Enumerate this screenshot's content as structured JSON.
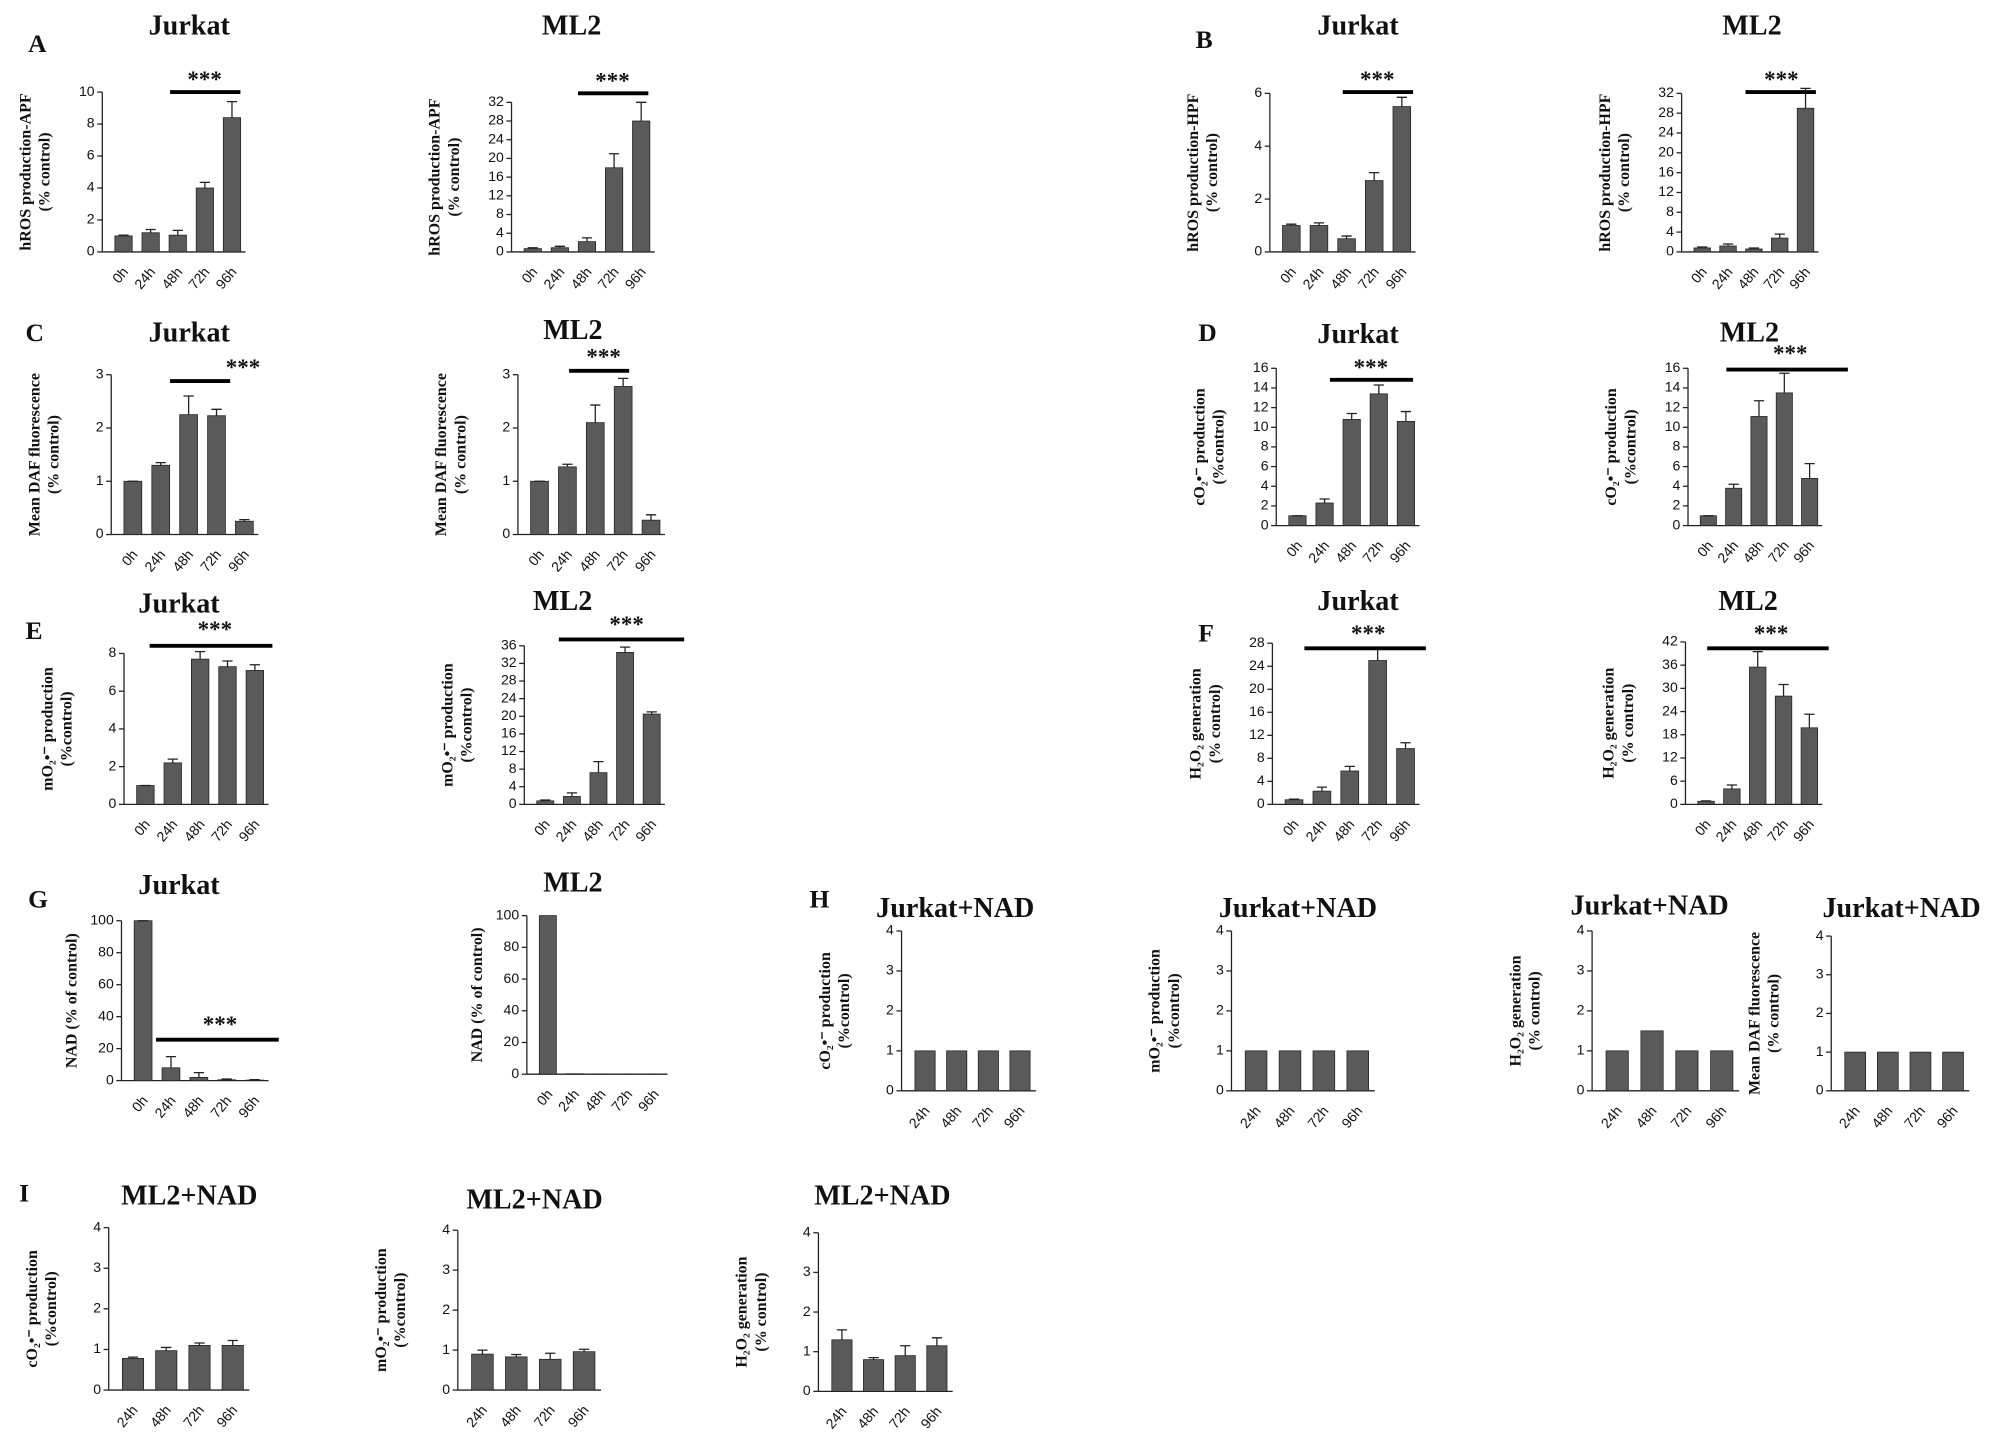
{
  "chart_data": [
    {
      "type": "bar",
      "panel": "A",
      "title": "Jurkat",
      "ylabel": [
        "hROS production-APF",
        "(% control)"
      ],
      "categories": [
        "0h",
        "24h",
        "48h",
        "72h",
        "96h"
      ],
      "values": [
        1,
        1.2,
        1.05,
        4,
        8.4
      ],
      "errors": [
        0.05,
        0.2,
        0.3,
        0.35,
        1.0
      ],
      "ylim": [
        0,
        10
      ],
      "yticks": [
        0,
        2,
        4,
        6,
        8,
        10
      ],
      "color": "#5a5a5a",
      "annotation": "***"
    },
    {
      "type": "bar",
      "title": "ML2",
      "ylabel": [
        "hROS production-APF",
        "(% control)"
      ],
      "categories": [
        "0h",
        "24h",
        "48h",
        "72h",
        "96h"
      ],
      "values": [
        0.7,
        0.9,
        2.2,
        18,
        28
      ],
      "errors": [
        0.2,
        0.3,
        0.8,
        3,
        4
      ],
      "ylim": [
        0,
        32
      ],
      "yticks": [
        0,
        4,
        8,
        12,
        16,
        20,
        24,
        28,
        32
      ],
      "color": "#5a5a5a",
      "annotation": "***"
    },
    {
      "type": "bar",
      "panel": "B",
      "title": "Jurkat",
      "ylabel": [
        "hROS production-HPF",
        "(% control)"
      ],
      "categories": [
        "0h",
        "24h",
        "48h",
        "72h",
        "96h"
      ],
      "values": [
        1,
        1,
        0.5,
        2.7,
        5.5
      ],
      "errors": [
        0.05,
        0.1,
        0.1,
        0.3,
        0.35
      ],
      "ylim": [
        0,
        6
      ],
      "yticks": [
        0,
        2,
        4,
        6
      ],
      "color": "#5a5a5a",
      "annotation": "***"
    },
    {
      "type": "bar",
      "title": "ML2",
      "ylabel": [
        "hROS production-HPF",
        "(% control)"
      ],
      "categories": [
        "0h",
        "24h",
        "48h",
        "72h",
        "96h"
      ],
      "values": [
        0.8,
        1.2,
        0.6,
        2.8,
        29
      ],
      "errors": [
        0.2,
        0.4,
        0.2,
        0.8,
        4
      ],
      "ylim": [
        0,
        32
      ],
      "yticks": [
        0,
        4,
        8,
        12,
        16,
        20,
        24,
        28,
        32
      ],
      "color": "#5a5a5a",
      "annotation": "***"
    },
    {
      "type": "bar",
      "panel": "C",
      "title": "Jurkat",
      "ylabel": [
        "Mean DAF fluorescence",
        "(% control)"
      ],
      "categories": [
        "0h",
        "24h",
        "48h",
        "72h",
        "96h"
      ],
      "values": [
        1,
        1.3,
        2.25,
        2.23,
        0.25
      ],
      "errors": [
        0,
        0.05,
        0.35,
        0.12,
        0.03
      ],
      "ylim": [
        0,
        3
      ],
      "yticks": [
        0,
        1,
        2,
        3
      ],
      "color": "#5a5a5a",
      "annotation": "***"
    },
    {
      "type": "bar",
      "title": "ML2",
      "ylabel": [
        "Mean DAF fluorescence",
        "(% control)"
      ],
      "categories": [
        "0h",
        "24h",
        "48h",
        "72h",
        "96h"
      ],
      "values": [
        1,
        1.27,
        2.1,
        2.78,
        0.27
      ],
      "errors": [
        0,
        0.05,
        0.33,
        0.15,
        0.1
      ],
      "ylim": [
        0,
        3
      ],
      "yticks": [
        0,
        1,
        2,
        3
      ],
      "color": "#5a5a5a",
      "annotation": "***"
    },
    {
      "type": "bar",
      "panel": "D",
      "title": "Jurkat",
      "ylabel": [
        "cO₂•⁻ production",
        "(%control)"
      ],
      "categories": [
        "0h",
        "24h",
        "48h",
        "72h",
        "96h"
      ],
      "values": [
        1,
        2.3,
        10.8,
        13.4,
        10.6
      ],
      "errors": [
        0,
        0.4,
        0.6,
        0.9,
        1
      ],
      "ylim": [
        0,
        16
      ],
      "yticks": [
        0,
        2,
        4,
        6,
        8,
        10,
        12,
        14,
        16
      ],
      "color": "#5a5a5a",
      "annotation": "***"
    },
    {
      "type": "bar",
      "title": "ML2",
      "ylabel": [
        "cO₂•⁻ production",
        "(%control)"
      ],
      "categories": [
        "0h",
        "24h",
        "48h",
        "72h",
        "96h"
      ],
      "values": [
        1,
        3.8,
        11.1,
        13.5,
        4.8
      ],
      "errors": [
        0,
        0.4,
        1.6,
        2,
        1.5
      ],
      "ylim": [
        0,
        16
      ],
      "yticks": [
        0,
        2,
        4,
        6,
        8,
        10,
        12,
        14,
        16
      ],
      "color": "#5a5a5a",
      "annotation": "***"
    },
    {
      "type": "bar",
      "panel": "E",
      "title": "Jurkat",
      "ylabel": [
        "mO₂•⁻ production",
        "(%control)"
      ],
      "categories": [
        "0h",
        "24h",
        "48h",
        "72h",
        "96h"
      ],
      "values": [
        1,
        2.2,
        7.7,
        7.3,
        7.1
      ],
      "errors": [
        0,
        0.2,
        0.4,
        0.3,
        0.3
      ],
      "ylim": [
        0,
        8
      ],
      "yticks": [
        0,
        2,
        4,
        6,
        8
      ],
      "color": "#5a5a5a",
      "annotation": "***"
    },
    {
      "type": "bar",
      "title": "ML2",
      "ylabel": [
        "mO₂•⁻ production",
        "(%control)"
      ],
      "categories": [
        "0h",
        "24h",
        "48h",
        "72h",
        "96h"
      ],
      "values": [
        0.8,
        1.8,
        7.2,
        34.5,
        20.5
      ],
      "errors": [
        0.2,
        0.8,
        2.5,
        1.2,
        0.5
      ],
      "ylim": [
        0,
        36
      ],
      "yticks": [
        0,
        4,
        8,
        12,
        16,
        20,
        24,
        28,
        32,
        36
      ],
      "color": "#5a5a5a",
      "annotation": "***"
    },
    {
      "type": "bar",
      "panel": "F",
      "title": "Jurkat",
      "ylabel": [
        "H₂O₂ generation",
        "(% control)"
      ],
      "categories": [
        "0h",
        "24h",
        "48h",
        "72h",
        "96h"
      ],
      "values": [
        0.8,
        2.3,
        5.8,
        25,
        9.7
      ],
      "errors": [
        0.1,
        0.7,
        0.8,
        2,
        1
      ],
      "ylim": [
        0,
        28
      ],
      "yticks": [
        0,
        4,
        8,
        12,
        16,
        20,
        24,
        28
      ],
      "color": "#5a5a5a",
      "annotation": "***"
    },
    {
      "type": "bar",
      "title": "ML2",
      "ylabel": [
        "H₂O₂ generation",
        "(% control)"
      ],
      "categories": [
        "0h",
        "24h",
        "48h",
        "72h",
        "96h"
      ],
      "values": [
        0.8,
        4,
        35.5,
        28,
        19.8
      ],
      "errors": [
        0.1,
        1,
        4,
        3,
        3.5
      ],
      "ylim": [
        0,
        42
      ],
      "yticks": [
        0,
        6,
        12,
        18,
        24,
        30,
        36,
        42
      ],
      "color": "#5a5a5a",
      "annotation": "***"
    },
    {
      "type": "bar",
      "panel": "G",
      "title": "Jurkat",
      "ylabel": [
        "NAD (% of control)"
      ],
      "categories": [
        "0h",
        "24h",
        "48h",
        "72h",
        "96h"
      ],
      "values": [
        100,
        8,
        2,
        0.5,
        0.3
      ],
      "errors": [
        0,
        7,
        3,
        0.5,
        0.3
      ],
      "ylim": [
        0,
        100
      ],
      "yticks": [
        0,
        20,
        40,
        60,
        80,
        100
      ],
      "color": "#5a5a5a",
      "annotation": "***"
    },
    {
      "type": "bar",
      "title": "ML2",
      "ylabel": [
        "NAD (% of control)"
      ],
      "categories": [
        "0h",
        "24h",
        "48h",
        "72h",
        "96h"
      ],
      "values": [
        100,
        0.3,
        0.2,
        0.1,
        0.1
      ],
      "ylim": [
        0,
        100
      ],
      "yticks": [
        0,
        20,
        40,
        60,
        80,
        100
      ],
      "color": "#5a5a5a"
    },
    {
      "type": "bar",
      "panel": "H",
      "title": "Jurkat+NAD",
      "ylabel": [
        "cO₂•⁻ production",
        "(%control)"
      ],
      "categories": [
        "24h",
        "48h",
        "72h",
        "96h"
      ],
      "values": [
        1,
        1,
        1,
        1
      ],
      "ylim": [
        0,
        4
      ],
      "yticks": [
        0,
        1,
        2,
        3,
        4
      ],
      "color": "#5a5a5a"
    },
    {
      "type": "bar",
      "title": "Jurkat+NAD",
      "ylabel": [
        "mO₂•⁻ production",
        "(%control)"
      ],
      "categories": [
        "24h",
        "48h",
        "72h",
        "96h"
      ],
      "values": [
        1,
        1,
        1,
        1
      ],
      "ylim": [
        0,
        4
      ],
      "yticks": [
        0,
        1,
        2,
        3,
        4
      ],
      "color": "#5a5a5a"
    },
    {
      "type": "bar",
      "title": "Jurkat+NAD",
      "ylabel": [
        "H₂O₂ generation",
        "(% control)"
      ],
      "categories": [
        "24h",
        "48h",
        "72h",
        "96h"
      ],
      "values": [
        1,
        1.5,
        1,
        1
      ],
      "ylim": [
        0,
        4
      ],
      "yticks": [
        0,
        1,
        2,
        3,
        4
      ],
      "color": "#5a5a5a"
    },
    {
      "type": "bar",
      "title": "Jurkat+NAD",
      "ylabel": [
        "Mean DAF fluorescence",
        "(% control)"
      ],
      "categories": [
        "24h",
        "48h",
        "72h",
        "96h"
      ],
      "values": [
        1,
        1,
        1,
        1
      ],
      "ylim": [
        0,
        4
      ],
      "yticks": [
        0,
        1,
        2,
        3,
        4
      ],
      "color": "#5a5a5a"
    },
    {
      "type": "bar",
      "panel": "I",
      "title": "ML2+NAD",
      "ylabel": [
        "cO₂•⁻ production",
        "(%control)"
      ],
      "categories": [
        "24h",
        "48h",
        "72h",
        "96h"
      ],
      "values": [
        0.78,
        0.97,
        1.1,
        1.1
      ],
      "errors": [
        0.03,
        0.08,
        0.06,
        0.12
      ],
      "ylim": [
        0,
        4
      ],
      "yticks": [
        0,
        1,
        2,
        3,
        4
      ],
      "color": "#5a5a5a"
    },
    {
      "type": "bar",
      "title": "ML2+NAD",
      "ylabel": [
        "mO₂•⁻ production",
        "(%control)"
      ],
      "categories": [
        "24h",
        "48h",
        "72h",
        "96h"
      ],
      "values": [
        0.9,
        0.83,
        0.77,
        0.96
      ],
      "errors": [
        0.1,
        0.06,
        0.15,
        0.06
      ],
      "ylim": [
        0,
        4
      ],
      "yticks": [
        0,
        1,
        2,
        3,
        4
      ],
      "color": "#5a5a5a"
    },
    {
      "type": "bar",
      "title": "ML2+NAD",
      "ylabel": [
        "H₂O₂ generation",
        "(% control)"
      ],
      "categories": [
        "24h",
        "48h",
        "72h",
        "96h"
      ],
      "values": [
        1.3,
        0.8,
        0.9,
        1.15
      ],
      "errors": [
        0.25,
        0.05,
        0.25,
        0.2
      ],
      "ylim": [
        0,
        4
      ],
      "yticks": [
        0,
        1,
        2,
        3,
        4
      ],
      "color": "#5a5a5a"
    }
  ]
}
